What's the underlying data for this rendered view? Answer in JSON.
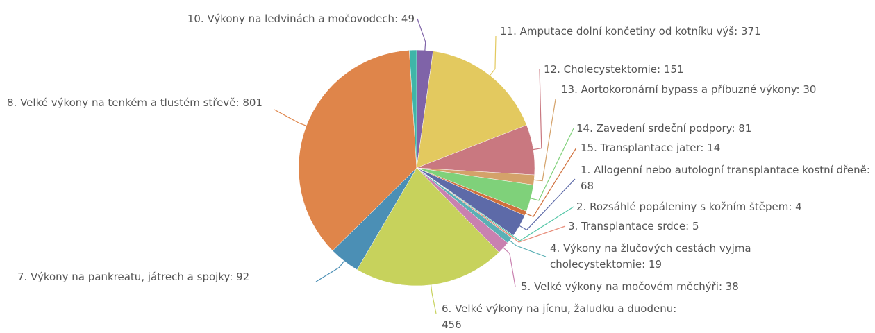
{
  "chart_data": {
    "type": "pie",
    "categories": [
      "10. Výkony na ledvinách a močovodech",
      "11. Amputace dolní končetiny od kotníku výš",
      "12. Cholecystektomie",
      "13. Aortokoronární bypass a příbuzné výkony",
      "14. Zavedení srdeční podpory",
      "15. Transplantace jater",
      "1. Allogenní nebo autologní transplantace kostní dřeně",
      "2. Rozsáhlé popáleniny s kožním štěpem",
      "3. Transplantace srdce",
      "4. Výkony na žlučových cestách vyjma cholecystektomie",
      "5. Velké výkony na močovém měchýři",
      "6. Velké výkony na jícnu, žaludku a duodenu",
      "7. Výkony na pankreatu, játrech a spojky",
      "8. Velké výkony na tenkém a tlustém střevě",
      null
    ],
    "values": [
      49,
      371,
      151,
      30,
      81,
      14,
      68,
      4,
      5,
      19,
      38,
      456,
      92,
      801,
      22
    ],
    "colors": [
      "#7f63a8",
      "#e3c95f",
      "#c97880",
      "#d4a26a",
      "#7fd17a",
      "#d0703c",
      "#5d6aa8",
      "#55c7a8",
      "#e88f7c",
      "#5ab0b5",
      "#c981b0",
      "#c7d25c",
      "#4b8fb5",
      "#df854a",
      "#3fb5a8"
    ]
  }
}
